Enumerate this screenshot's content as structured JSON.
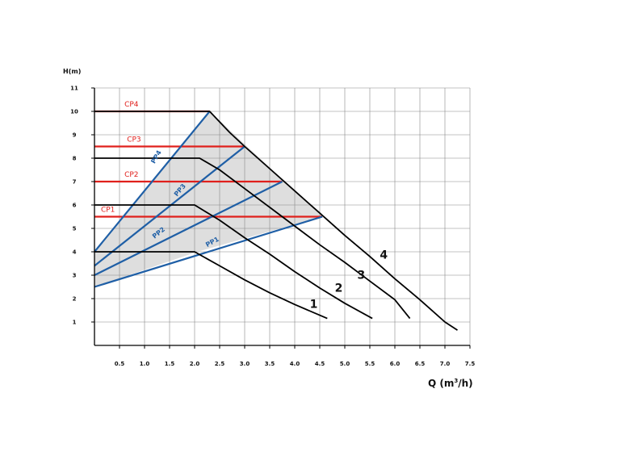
{
  "chart_data": {
    "type": "line",
    "xlabel": "Q (m",
    "xlabel_sup": "3",
    "xlabel_tail": "/h)",
    "ylabel": "H(m)",
    "xlim": [
      0,
      7.5
    ],
    "ylim": [
      0,
      11
    ],
    "grid": true,
    "x_ticks": [
      "0.5",
      "1.0",
      "1.5",
      "2.0",
      "2.5",
      "3.0",
      "3.5",
      "4.0",
      "4.5",
      "5.0",
      "5.5",
      "6.0",
      "6.5",
      "7.0",
      "7.5"
    ],
    "y_ticks": [
      "1",
      "2",
      "3",
      "4",
      "5",
      "6",
      "7",
      "8",
      "9",
      "10",
      "11"
    ],
    "colors": {
      "speed": "#000000",
      "proportional": "#1f5fa6",
      "constant": "#e0201c",
      "region": "#d8d8d8",
      "grid": "#888888"
    },
    "speed_curves": [
      {
        "label": "1",
        "points": [
          [
            0,
            4.0
          ],
          [
            2.0,
            4.0
          ],
          [
            2.5,
            3.4
          ],
          [
            3.0,
            2.8
          ],
          [
            3.5,
            2.25
          ],
          [
            4.0,
            1.75
          ],
          [
            4.65,
            1.15
          ]
        ],
        "label_at": [
          4.3,
          1.6
        ]
      },
      {
        "label": "2",
        "points": [
          [
            0,
            6.0
          ],
          [
            2.0,
            6.0
          ],
          [
            2.5,
            5.35
          ],
          [
            3.0,
            4.6
          ],
          [
            3.5,
            3.9
          ],
          [
            4.0,
            3.15
          ],
          [
            4.5,
            2.45
          ],
          [
            5.0,
            1.8
          ],
          [
            5.55,
            1.15
          ]
        ],
        "label_at": [
          4.8,
          2.3
        ]
      },
      {
        "label": "3",
        "points": [
          [
            0,
            8.0
          ],
          [
            2.1,
            8.0
          ],
          [
            2.5,
            7.5
          ],
          [
            3.0,
            6.7
          ],
          [
            3.5,
            5.9
          ],
          [
            4.0,
            5.1
          ],
          [
            4.5,
            4.3
          ],
          [
            5.0,
            3.55
          ],
          [
            5.5,
            2.75
          ],
          [
            6.0,
            1.95
          ],
          [
            6.3,
            1.15
          ]
        ],
        "label_at": [
          5.25,
          2.85
        ]
      },
      {
        "label": "4",
        "points": [
          [
            0,
            10.0
          ],
          [
            2.3,
            10.0
          ],
          [
            2.7,
            9.1
          ],
          [
            3.0,
            8.5
          ],
          [
            3.5,
            7.55
          ],
          [
            4.0,
            6.6
          ],
          [
            4.5,
            5.65
          ],
          [
            5.0,
            4.7
          ],
          [
            5.5,
            3.8
          ],
          [
            6.0,
            2.85
          ],
          [
            6.5,
            1.95
          ],
          [
            7.0,
            1.0
          ],
          [
            7.25,
            0.65
          ]
        ],
        "label_at": [
          5.7,
          3.7
        ]
      }
    ],
    "proportional_lines": [
      {
        "label": "PP1",
        "points": [
          [
            0,
            2.5
          ],
          [
            4.55,
            5.5
          ]
        ],
        "label_at": [
          2.25,
          4.2
        ],
        "angle": -28
      },
      {
        "label": "PP2",
        "points": [
          [
            0,
            3.0
          ],
          [
            3.75,
            7.0
          ]
        ],
        "label_at": [
          1.2,
          4.55
        ],
        "angle": -39
      },
      {
        "label": "PP3",
        "points": [
          [
            0,
            3.4
          ],
          [
            3.0,
            8.5
          ]
        ],
        "label_at": [
          1.65,
          6.35
        ],
        "angle": -50
      },
      {
        "label": "PP4",
        "points": [
          [
            0,
            4.0
          ],
          [
            2.3,
            10.0
          ]
        ],
        "label_at": [
          1.2,
          7.75
        ],
        "angle": -60
      }
    ],
    "constant_lines": [
      {
        "label": "CP1",
        "points": [
          [
            0,
            5.5
          ],
          [
            4.55,
            5.5
          ]
        ],
        "label_at": [
          0.08,
          5.7
        ]
      },
      {
        "label": "CP2",
        "points": [
          [
            0,
            7.0
          ],
          [
            3.75,
            7.0
          ]
        ],
        "label_at": [
          0.55,
          7.2
        ]
      },
      {
        "label": "CP3",
        "points": [
          [
            0,
            8.5
          ],
          [
            3.0,
            8.5
          ]
        ],
        "label_at": [
          0.6,
          8.7
        ]
      },
      {
        "label": "CP4",
        "points": [
          [
            0,
            10.0
          ],
          [
            2.3,
            10.0
          ]
        ],
        "label_at": [
          0.55,
          10.2
        ]
      }
    ],
    "shaded_region": [
      [
        0,
        4.0
      ],
      [
        2.3,
        10.0
      ],
      [
        4.55,
        5.5
      ],
      [
        2.05,
        4.0
      ],
      [
        0,
        2.5
      ]
    ]
  }
}
